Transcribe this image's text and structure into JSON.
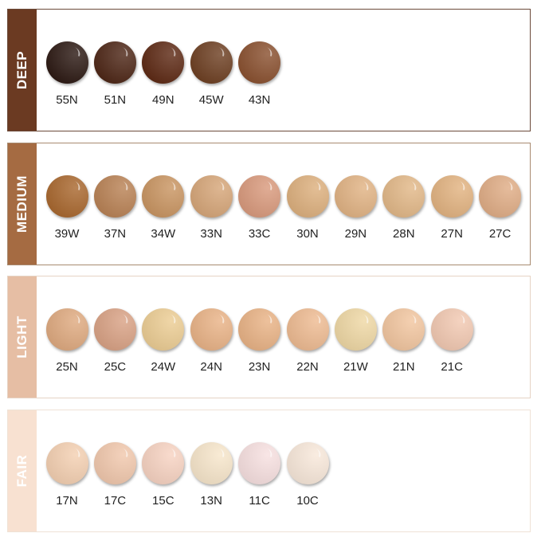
{
  "groups": [
    {
      "name": "DEEP",
      "color": "#6b3a22",
      "border": "#6b4a3a",
      "shades": [
        {
          "code": "55N",
          "color": "#2d1a14"
        },
        {
          "code": "51N",
          "color": "#4e2717"
        },
        {
          "code": "49N",
          "color": "#5e2a15"
        },
        {
          "code": "45W",
          "color": "#6e4023"
        },
        {
          "code": "43N",
          "color": "#8a5130"
        }
      ]
    },
    {
      "name": "MEDIUM",
      "color": "#a56b42",
      "border": "#a88a70",
      "shades": [
        {
          "code": "39W",
          "color": "#a9682f"
        },
        {
          "code": "37N",
          "color": "#b98255"
        },
        {
          "code": "34W",
          "color": "#c99562"
        },
        {
          "code": "33N",
          "color": "#d6a679"
        },
        {
          "code": "33C",
          "color": "#d99a7d"
        },
        {
          "code": "30N",
          "color": "#ddb07e"
        },
        {
          "code": "29N",
          "color": "#e1b384"
        },
        {
          "code": "28N",
          "color": "#e2b888"
        },
        {
          "code": "27N",
          "color": "#e2b381"
        },
        {
          "code": "27C",
          "color": "#e0ad86"
        }
      ]
    },
    {
      "name": "LIGHT",
      "color": "#e6bea4",
      "border": "#e6d3c4",
      "shades": [
        {
          "code": "25N",
          "color": "#dfaa80"
        },
        {
          "code": "25C",
          "color": "#d9a285"
        },
        {
          "code": "24W",
          "color": "#eccd94"
        },
        {
          "code": "24N",
          "color": "#e9b387"
        },
        {
          "code": "23N",
          "color": "#e9b386"
        },
        {
          "code": "22N",
          "color": "#eebb92"
        },
        {
          "code": "21W",
          "color": "#efd8a5"
        },
        {
          "code": "21N",
          "color": "#f2c6a0"
        },
        {
          "code": "21C",
          "color": "#f2c9b2"
        }
      ]
    },
    {
      "name": "FAIR",
      "color": "#f8e1d1",
      "border": "#efe2d6",
      "shades": [
        {
          "code": "17N",
          "color": "#f4d0b2"
        },
        {
          "code": "17C",
          "color": "#f1c8ad"
        },
        {
          "code": "15C",
          "color": "#f7d3c2"
        },
        {
          "code": "13N",
          "color": "#f7e6cb"
        },
        {
          "code": "11C",
          "color": "#f7e0e0"
        },
        {
          "code": "10C",
          "color": "#f8e8da"
        }
      ]
    }
  ]
}
